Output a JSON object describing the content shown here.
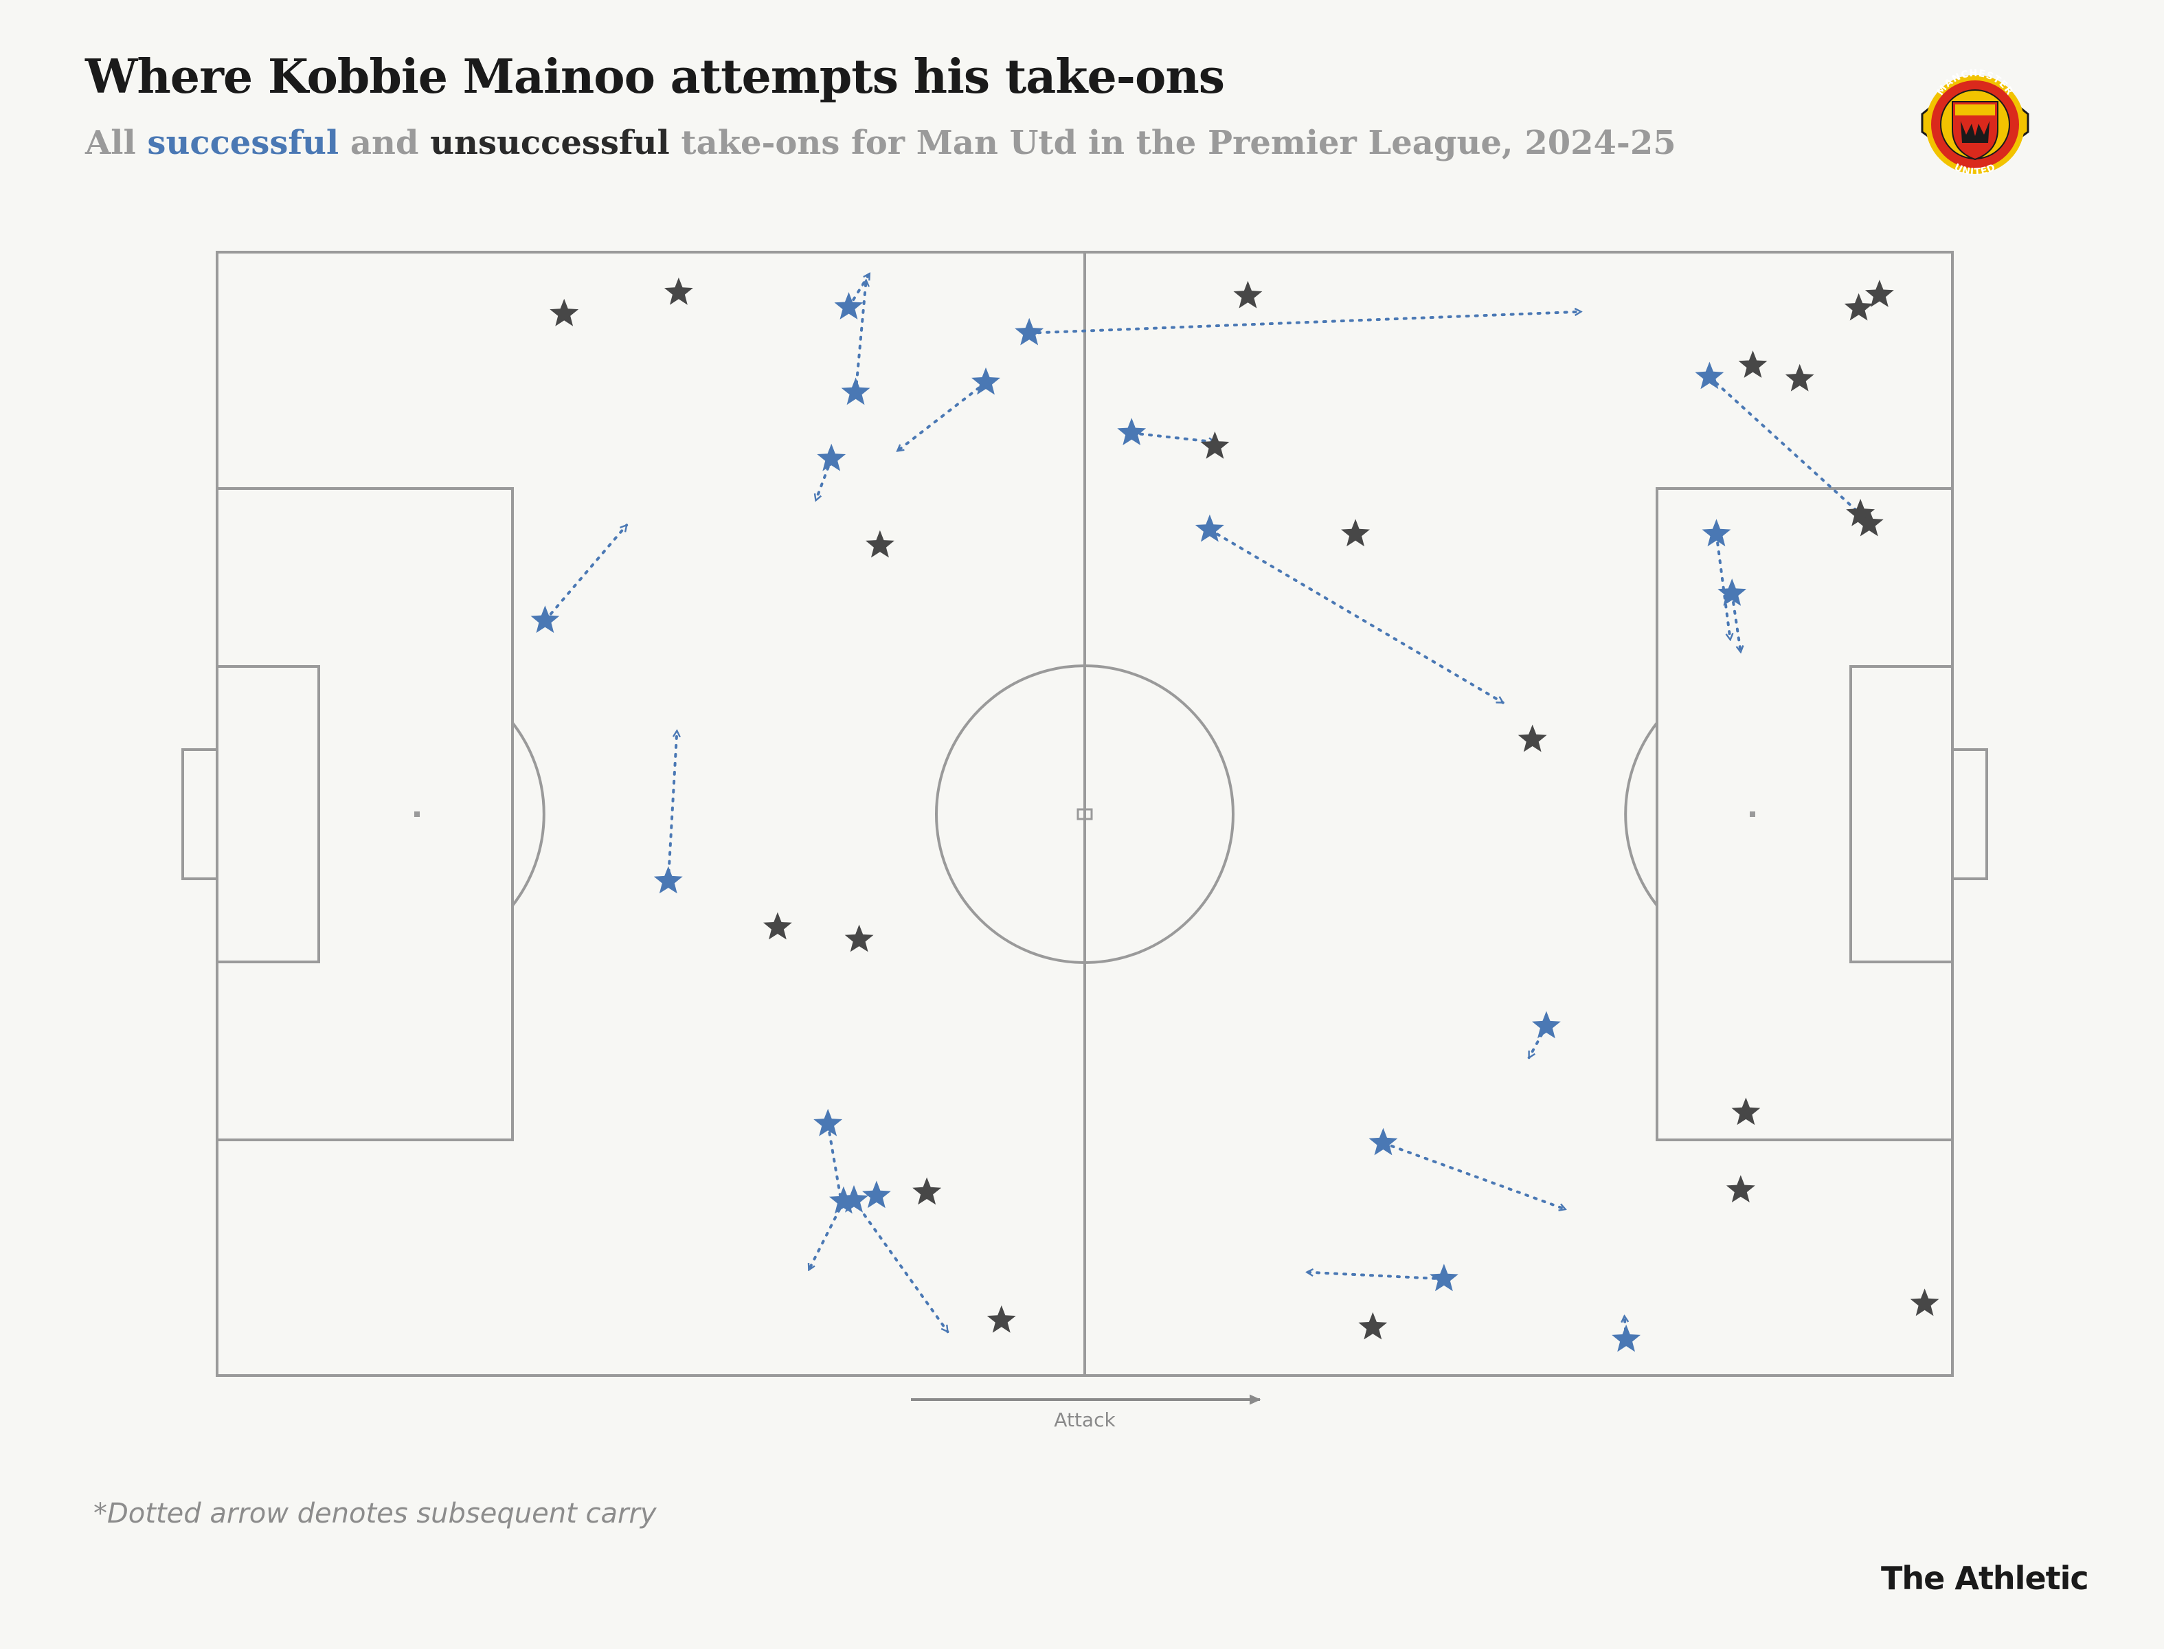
{
  "header": {
    "title": "Where Kobbie Mainoo attempts his take-ons",
    "subtitle_prefix": "All ",
    "subtitle_successful": "successful",
    "subtitle_and": " and ",
    "subtitle_unsuccessful": "unsuccessful",
    "subtitle_suffix": " take-ons for Man Utd in the Premier League, 2024-25"
  },
  "crest": {
    "top_text": "MANCHESTER",
    "bottom_text": "UNITED",
    "icon": "club-crest-icon"
  },
  "colors": {
    "successful": "#4a78b4",
    "unsuccessful": "#474747",
    "pitch_line": "#9a9a9a",
    "background": "#f7f7f4"
  },
  "attack_label": "Attack",
  "footnote": "*Dotted arrow denotes subsequent carry",
  "brand": "The Athletic",
  "chart_data": {
    "type": "scatter",
    "pitch": {
      "length": 100,
      "width": 100,
      "attack_direction": "left-to-right"
    },
    "legend": [
      {
        "name": "successful",
        "marker": "star",
        "color": "#4a78b4"
      },
      {
        "name": "unsuccessful",
        "marker": "star",
        "color": "#474747"
      }
    ],
    "successful": [
      {
        "x": 36.4,
        "y": 95.1,
        "carry_to": [
          37.6,
          98.1
        ]
      },
      {
        "x": 36.8,
        "y": 87.5,
        "carry_to": [
          37.4,
          97.5
        ]
      },
      {
        "x": 46.8,
        "y": 92.8,
        "carry_to": [
          78.6,
          94.7
        ]
      },
      {
        "x": 44.3,
        "y": 88.4,
        "carry_to": [
          39.2,
          82.3
        ]
      },
      {
        "x": 35.4,
        "y": 81.6,
        "carry_to": [
          34.5,
          77.9
        ]
      },
      {
        "x": 18.9,
        "y": 67.2,
        "carry_to": [
          23.6,
          75.7
        ]
      },
      {
        "x": 26.0,
        "y": 44.0,
        "carry_to": [
          26.5,
          57.4
        ]
      },
      {
        "x": 35.2,
        "y": 22.4,
        "carry_to": [
          36.0,
          15.2
        ]
      },
      {
        "x": 36.1,
        "y": 15.5,
        "carry_to": [
          34.1,
          9.4
        ]
      },
      {
        "x": 36.7,
        "y": 15.6,
        "carry_to": [
          42.1,
          3.9
        ]
      },
      {
        "x": 38.0,
        "y": 16.0
      },
      {
        "x": 52.7,
        "y": 83.9,
        "carry_to": [
          57.5,
          83.1
        ]
      },
      {
        "x": 57.2,
        "y": 75.3,
        "carry_to": [
          74.1,
          59.9
        ]
      },
      {
        "x": 67.2,
        "y": 20.7,
        "carry_to": [
          77.7,
          14.8
        ]
      },
      {
        "x": 70.7,
        "y": 8.6,
        "carry_to": [
          62.8,
          9.2
        ]
      },
      {
        "x": 76.6,
        "y": 31.1,
        "carry_to": [
          75.6,
          28.3
        ]
      },
      {
        "x": 81.2,
        "y": 3.2,
        "carry_to": [
          81.1,
          5.3
        ]
      },
      {
        "x": 86.0,
        "y": 88.9,
        "carry_to": [
          94.9,
          76.4
        ]
      },
      {
        "x": 86.4,
        "y": 74.9,
        "carry_to": [
          87.2,
          65.5
        ]
      },
      {
        "x": 87.3,
        "y": 69.6,
        "carry_to": [
          87.8,
          64.4
        ]
      }
    ],
    "unsuccessful": [
      {
        "x": 20.0,
        "y": 94.5
      },
      {
        "x": 26.6,
        "y": 96.4
      },
      {
        "x": 38.2,
        "y": 73.9
      },
      {
        "x": 32.3,
        "y": 39.9
      },
      {
        "x": 37.0,
        "y": 38.8
      },
      {
        "x": 40.9,
        "y": 16.3
      },
      {
        "x": 45.2,
        "y": 4.9
      },
      {
        "x": 59.4,
        "y": 96.1
      },
      {
        "x": 57.5,
        "y": 82.7
      },
      {
        "x": 65.6,
        "y": 74.9
      },
      {
        "x": 75.8,
        "y": 56.6
      },
      {
        "x": 66.6,
        "y": 4.3
      },
      {
        "x": 88.5,
        "y": 89.9
      },
      {
        "x": 91.2,
        "y": 88.7
      },
      {
        "x": 94.6,
        "y": 95.0
      },
      {
        "x": 95.8,
        "y": 96.2
      },
      {
        "x": 94.7,
        "y": 76.7
      },
      {
        "x": 95.2,
        "y": 75.8
      },
      {
        "x": 88.1,
        "y": 23.4
      },
      {
        "x": 87.8,
        "y": 16.5
      },
      {
        "x": 98.4,
        "y": 6.4
      }
    ]
  }
}
